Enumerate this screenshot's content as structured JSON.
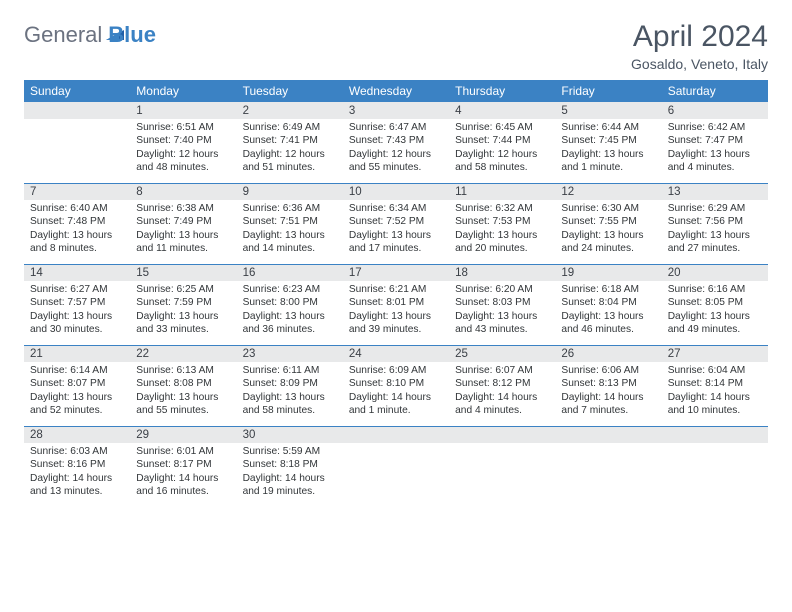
{
  "brand": {
    "part1": "General",
    "part2": "Blue"
  },
  "title": "April 2024",
  "location": "Gosaldo, Veneto, Italy",
  "colors": {
    "header_bg": "#3b82c4",
    "header_text": "#ffffff",
    "daynum_bg": "#e8e9ea",
    "page_bg": "#ffffff",
    "title_color": "#4a5563",
    "row_border": "#3b82c4"
  },
  "weekdays": [
    "Sunday",
    "Monday",
    "Tuesday",
    "Wednesday",
    "Thursday",
    "Friday",
    "Saturday"
  ],
  "weeks": [
    {
      "nums": [
        "",
        "1",
        "2",
        "3",
        "4",
        "5",
        "6"
      ],
      "cells": [
        null,
        {
          "sunrise": "6:51 AM",
          "sunset": "7:40 PM",
          "daylight": "12 hours and 48 minutes."
        },
        {
          "sunrise": "6:49 AM",
          "sunset": "7:41 PM",
          "daylight": "12 hours and 51 minutes."
        },
        {
          "sunrise": "6:47 AM",
          "sunset": "7:43 PM",
          "daylight": "12 hours and 55 minutes."
        },
        {
          "sunrise": "6:45 AM",
          "sunset": "7:44 PM",
          "daylight": "12 hours and 58 minutes."
        },
        {
          "sunrise": "6:44 AM",
          "sunset": "7:45 PM",
          "daylight": "13 hours and 1 minute."
        },
        {
          "sunrise": "6:42 AM",
          "sunset": "7:47 PM",
          "daylight": "13 hours and 4 minutes."
        }
      ]
    },
    {
      "nums": [
        "7",
        "8",
        "9",
        "10",
        "11",
        "12",
        "13"
      ],
      "cells": [
        {
          "sunrise": "6:40 AM",
          "sunset": "7:48 PM",
          "daylight": "13 hours and 8 minutes."
        },
        {
          "sunrise": "6:38 AM",
          "sunset": "7:49 PM",
          "daylight": "13 hours and 11 minutes."
        },
        {
          "sunrise": "6:36 AM",
          "sunset": "7:51 PM",
          "daylight": "13 hours and 14 minutes."
        },
        {
          "sunrise": "6:34 AM",
          "sunset": "7:52 PM",
          "daylight": "13 hours and 17 minutes."
        },
        {
          "sunrise": "6:32 AM",
          "sunset": "7:53 PM",
          "daylight": "13 hours and 20 minutes."
        },
        {
          "sunrise": "6:30 AM",
          "sunset": "7:55 PM",
          "daylight": "13 hours and 24 minutes."
        },
        {
          "sunrise": "6:29 AM",
          "sunset": "7:56 PM",
          "daylight": "13 hours and 27 minutes."
        }
      ]
    },
    {
      "nums": [
        "14",
        "15",
        "16",
        "17",
        "18",
        "19",
        "20"
      ],
      "cells": [
        {
          "sunrise": "6:27 AM",
          "sunset": "7:57 PM",
          "daylight": "13 hours and 30 minutes."
        },
        {
          "sunrise": "6:25 AM",
          "sunset": "7:59 PM",
          "daylight": "13 hours and 33 minutes."
        },
        {
          "sunrise": "6:23 AM",
          "sunset": "8:00 PM",
          "daylight": "13 hours and 36 minutes."
        },
        {
          "sunrise": "6:21 AM",
          "sunset": "8:01 PM",
          "daylight": "13 hours and 39 minutes."
        },
        {
          "sunrise": "6:20 AM",
          "sunset": "8:03 PM",
          "daylight": "13 hours and 43 minutes."
        },
        {
          "sunrise": "6:18 AM",
          "sunset": "8:04 PM",
          "daylight": "13 hours and 46 minutes."
        },
        {
          "sunrise": "6:16 AM",
          "sunset": "8:05 PM",
          "daylight": "13 hours and 49 minutes."
        }
      ]
    },
    {
      "nums": [
        "21",
        "22",
        "23",
        "24",
        "25",
        "26",
        "27"
      ],
      "cells": [
        {
          "sunrise": "6:14 AM",
          "sunset": "8:07 PM",
          "daylight": "13 hours and 52 minutes."
        },
        {
          "sunrise": "6:13 AM",
          "sunset": "8:08 PM",
          "daylight": "13 hours and 55 minutes."
        },
        {
          "sunrise": "6:11 AM",
          "sunset": "8:09 PM",
          "daylight": "13 hours and 58 minutes."
        },
        {
          "sunrise": "6:09 AM",
          "sunset": "8:10 PM",
          "daylight": "14 hours and 1 minute."
        },
        {
          "sunrise": "6:07 AM",
          "sunset": "8:12 PM",
          "daylight": "14 hours and 4 minutes."
        },
        {
          "sunrise": "6:06 AM",
          "sunset": "8:13 PM",
          "daylight": "14 hours and 7 minutes."
        },
        {
          "sunrise": "6:04 AM",
          "sunset": "8:14 PM",
          "daylight": "14 hours and 10 minutes."
        }
      ]
    },
    {
      "nums": [
        "28",
        "29",
        "30",
        "",
        "",
        "",
        ""
      ],
      "cells": [
        {
          "sunrise": "6:03 AM",
          "sunset": "8:16 PM",
          "daylight": "14 hours and 13 minutes."
        },
        {
          "sunrise": "6:01 AM",
          "sunset": "8:17 PM",
          "daylight": "14 hours and 16 minutes."
        },
        {
          "sunrise": "5:59 AM",
          "sunset": "8:18 PM",
          "daylight": "14 hours and 19 minutes."
        },
        null,
        null,
        null,
        null
      ]
    }
  ],
  "labels": {
    "sunrise": "Sunrise:",
    "sunset": "Sunset:",
    "daylight": "Daylight:"
  }
}
